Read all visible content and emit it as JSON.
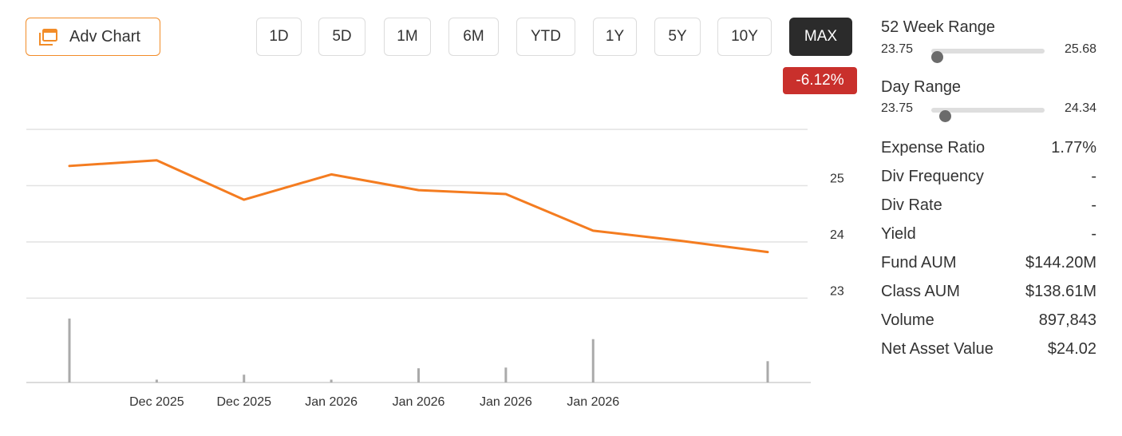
{
  "toolbar": {
    "adv_chart_label": "Adv Chart",
    "ranges": [
      "1D",
      "5D",
      "1M",
      "6M",
      "YTD",
      "1Y",
      "5Y",
      "10Y",
      "MAX"
    ],
    "active_range": "MAX",
    "change_pct": "-6.12%"
  },
  "colors": {
    "accent": "#f28c28",
    "line": "#f47c20",
    "negative": "#c9302c",
    "volume": "#aaaaaa",
    "active_button": "#2b2b2b"
  },
  "chart_data": {
    "type": "line",
    "title": "",
    "xlabel": "",
    "ylabel": "",
    "ylim": [
      22.85,
      26
    ],
    "yticks": [
      23,
      24,
      25
    ],
    "grid": true,
    "x_tick_labels": [
      "Dec 2025",
      "Dec 2025",
      "Jan 2026",
      "Jan 2026",
      "Jan 2026",
      "Jan 2026"
    ],
    "series": [
      {
        "values": [
          25.35,
          25.45,
          24.75,
          25.2,
          24.92,
          24.85,
          24.2,
          24.02,
          23.82
        ]
      }
    ],
    "volume": [
      0.9,
      0.04,
      0.11,
      0.04,
      0.2,
      0.21,
      0.61,
      0,
      0.3
    ]
  },
  "week52": {
    "title": "52 Week Range",
    "low": "23.75",
    "high": "25.68",
    "position": 0.05
  },
  "day": {
    "title": "Day Range",
    "low": "23.75",
    "high": "24.34",
    "position": 0.12
  },
  "stats": [
    {
      "label": "Expense Ratio",
      "value": "1.77%"
    },
    {
      "label": "Div Frequency",
      "value": "-"
    },
    {
      "label": "Div Rate",
      "value": "-"
    },
    {
      "label": "Yield",
      "value": "-"
    },
    {
      "label": "Fund AUM",
      "value": "$144.20M"
    },
    {
      "label": "Class AUM",
      "value": "$138.61M"
    },
    {
      "label": "Volume",
      "value": "897,843"
    },
    {
      "label": "Net Asset Value",
      "value": "$24.02"
    }
  ]
}
